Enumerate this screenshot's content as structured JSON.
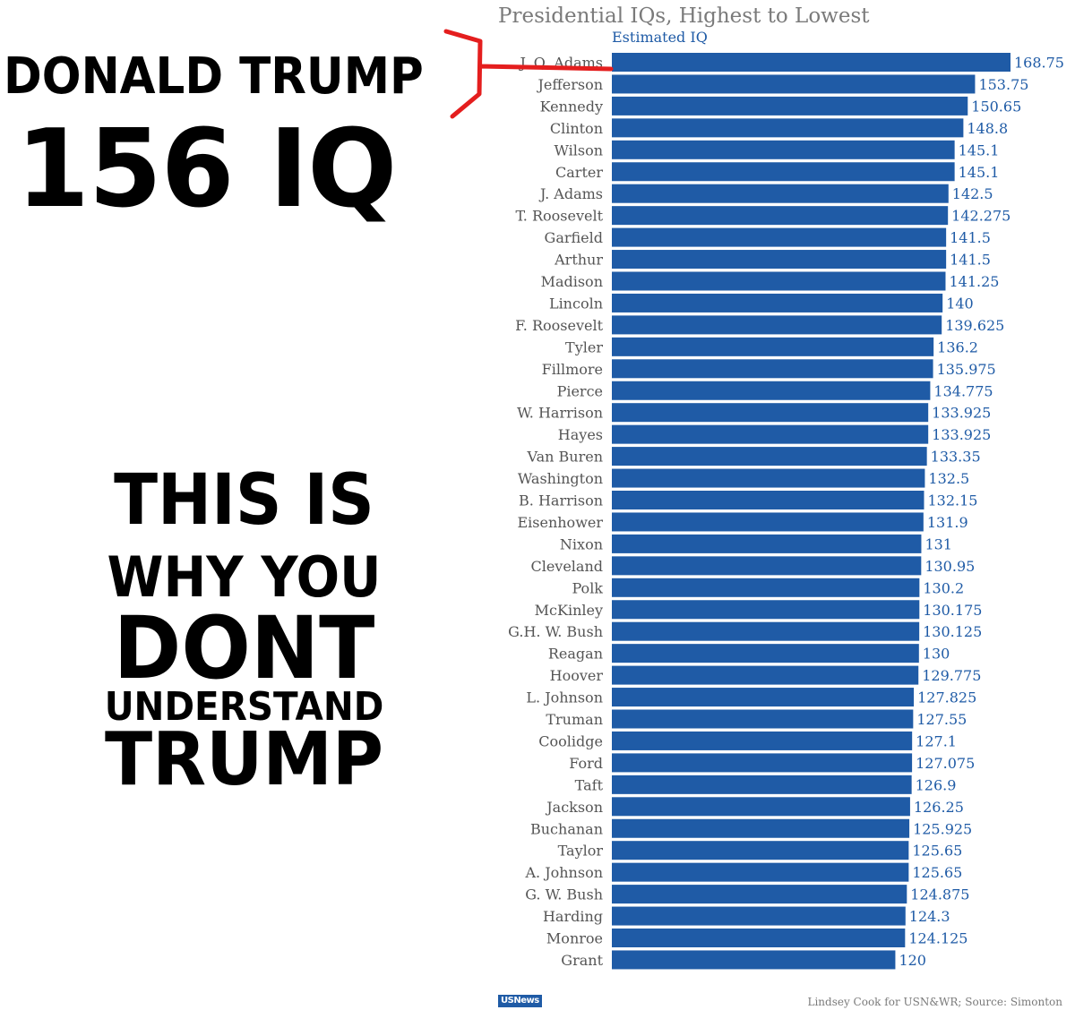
{
  "meme": {
    "headline_name": "DONALD TRUMP",
    "headline_iq": "156 IQ",
    "caption_line1": "THIS IS",
    "caption_line2": "WHY YOU",
    "caption_line3": "DONT",
    "caption_line4": "UNDERSTAND",
    "caption_line5": "TRUMP"
  },
  "chart_data": {
    "type": "bar",
    "orientation": "horizontal",
    "title": "Presidential IQs, Highest to Lowest",
    "subtitle": "Estimated IQ",
    "categories": [
      "J. Q. Adams",
      "Jefferson",
      "Kennedy",
      "Clinton",
      "Wilson",
      "Carter",
      "J. Adams",
      "T. Roosevelt",
      "Garfield",
      "Arthur",
      "Madison",
      "Lincoln",
      "F. Roosevelt",
      "Tyler",
      "Fillmore",
      "Pierce",
      "W. Harrison",
      "Hayes",
      "Van Buren",
      "Washington",
      "B. Harrison",
      "Eisenhower",
      "Nixon",
      "Cleveland",
      "Polk",
      "McKinley",
      "G.H. W. Bush",
      "Reagan",
      "Hoover",
      "L. Johnson",
      "Truman",
      "Coolidge",
      "Ford",
      "Taft",
      "Jackson",
      "Buchanan",
      "Taylor",
      "A. Johnson",
      "G. W. Bush",
      "Harding",
      "Monroe",
      "Grant"
    ],
    "values": [
      168.75,
      153.75,
      150.65,
      148.8,
      145.1,
      145.1,
      142.5,
      142.275,
      141.5,
      141.5,
      141.25,
      140,
      139.625,
      136.2,
      135.975,
      134.775,
      133.925,
      133.925,
      133.35,
      132.5,
      132.15,
      131.9,
      131,
      130.95,
      130.2,
      130.175,
      130.125,
      130,
      129.775,
      127.825,
      127.55,
      127.1,
      127.075,
      126.9,
      126.25,
      125.925,
      125.65,
      125.65,
      124.875,
      124.3,
      124.125,
      120
    ],
    "value_labels": [
      "168.75",
      "153.75",
      "150.65",
      "148.8",
      "145.1",
      "145.1",
      "142.5",
      "142.275",
      "141.5",
      "141.5",
      "141.25",
      "140",
      "139.625",
      "136.2",
      "135.975",
      "134.775",
      "133.925",
      "133.925",
      "133.35",
      "132.5",
      "132.15",
      "131.9",
      "131",
      "130.95",
      "130.2",
      "130.175",
      "130.125",
      "130",
      "129.775",
      "127.825",
      "127.55",
      "127.1",
      "127.075",
      "126.9",
      "126.25",
      "125.925",
      "125.65",
      "125.65",
      "124.875",
      "124.3",
      "124.125",
      "120"
    ],
    "xlim": [
      0,
      168.75
    ],
    "grid": false,
    "legend": "none",
    "bar_color": "#1f5ba6",
    "label_color": "#1f5ba6"
  },
  "footer": {
    "logo_text": "USNews",
    "credit": "Lindsey Cook for USN&WR; Source: Simonton"
  },
  "colors": {
    "annotation": "#e41e1e",
    "title": "#7a7a7a",
    "category_label": "#555555"
  }
}
